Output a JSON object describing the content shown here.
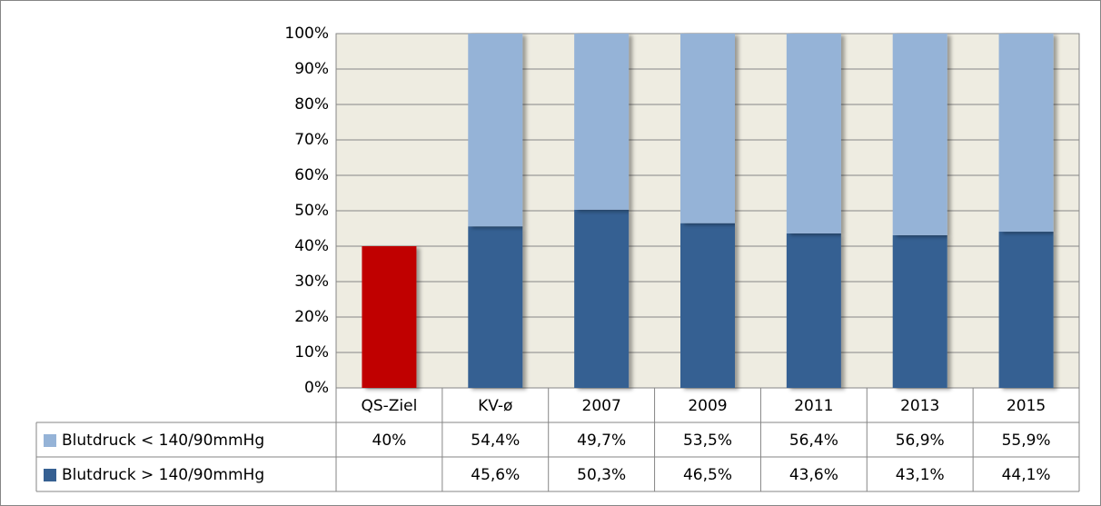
{
  "chart_data": {
    "type": "stacked_bar",
    "categories": [
      "QS-Ziel",
      "KV-ø",
      "2007",
      "2009",
      "2011",
      "2013",
      "2015"
    ],
    "series": [
      {
        "name": "Blutdruck < 140/90mmHg",
        "color": "#95b3d7",
        "point_colors": [
          "#c00000",
          "#95b3d7",
          "#95b3d7",
          "#95b3d7",
          "#95b3d7",
          "#95b3d7",
          "#95b3d7"
        ],
        "values": [
          40,
          54.4,
          49.7,
          53.5,
          56.4,
          56.9,
          55.9
        ],
        "value_labels": [
          "40%",
          "54,4%",
          "49,7%",
          "53,5%",
          "56,4%",
          "56,9%",
          "55,9%"
        ]
      },
      {
        "name": "Blutdruck > 140/90mmHg",
        "color": "#366092",
        "values": [
          null,
          45.6,
          50.3,
          46.5,
          43.6,
          43.1,
          44.1
        ],
        "value_labels": [
          null,
          "45,6%",
          "50,3%",
          "46,5%",
          "43,6%",
          "43,1%",
          "44,1%"
        ]
      }
    ],
    "ylim": [
      0,
      100
    ],
    "yticks": [
      {
        "value": 0,
        "label": "0%"
      },
      {
        "value": 10,
        "label": "10%"
      },
      {
        "value": 20,
        "label": "20%"
      },
      {
        "value": 30,
        "label": "30%"
      },
      {
        "value": 40,
        "label": "40%"
      },
      {
        "value": 50,
        "label": "50%"
      },
      {
        "value": 60,
        "label": "60%"
      },
      {
        "value": 70,
        "label": "70%"
      },
      {
        "value": 80,
        "label": "80%"
      },
      {
        "value": 90,
        "label": "90%"
      },
      {
        "value": 100,
        "label": "100%"
      }
    ],
    "grid": true,
    "plot_background": "#eeece1"
  }
}
